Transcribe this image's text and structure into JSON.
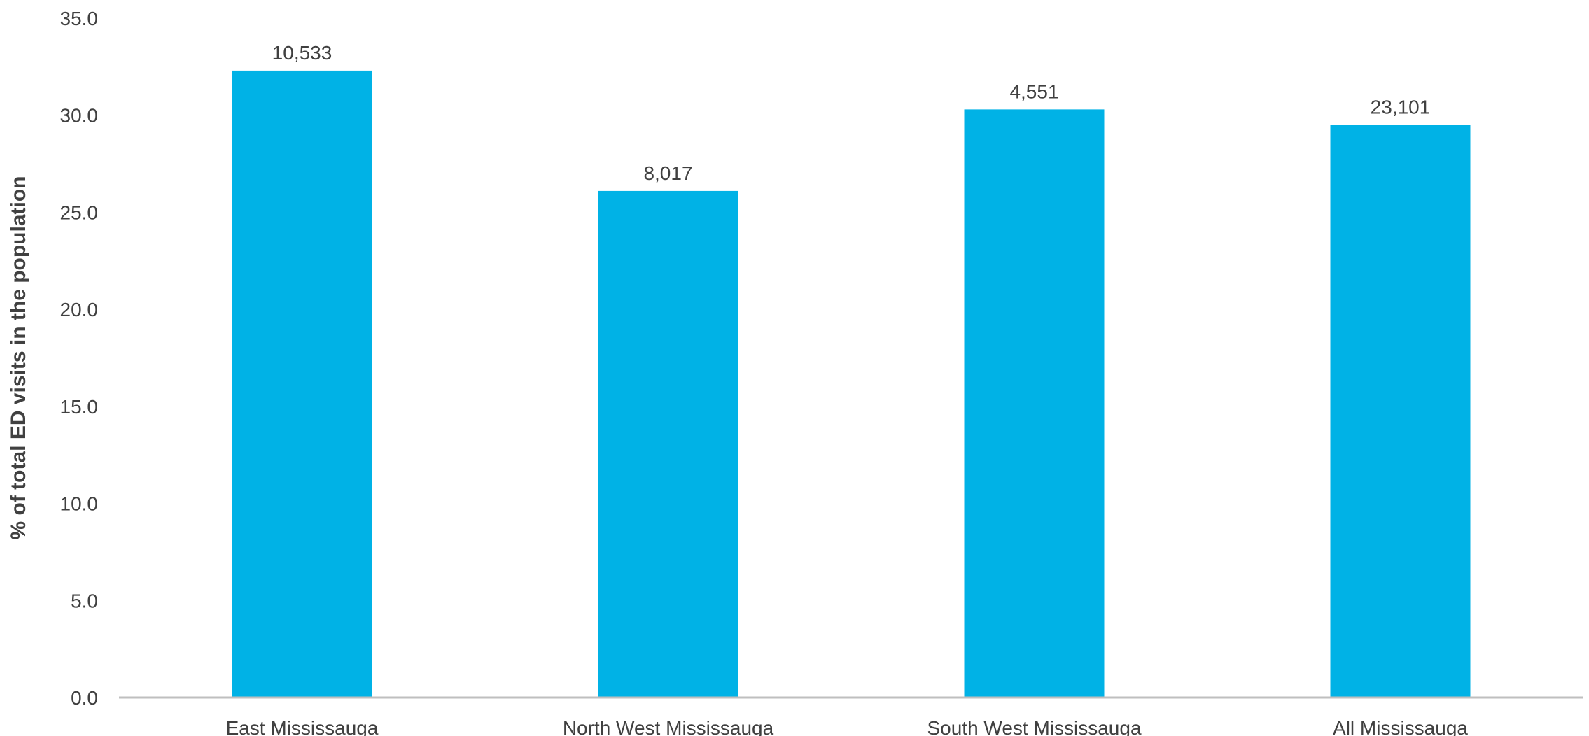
{
  "chart_data": {
    "type": "bar",
    "categories": [
      "East Mississauga",
      "North West Mississauga",
      "South West Mississauga",
      "All Mississauga"
    ],
    "values": [
      32.3,
      26.1,
      30.3,
      29.5
    ],
    "data_labels": [
      "10,533",
      "8,017",
      "4,551",
      "23,101"
    ],
    "title": "",
    "xlabel": "",
    "ylabel": "% of total ED visits in the population",
    "ylim": [
      0,
      35
    ],
    "yticks": [
      "0.0",
      "5.0",
      "10.0",
      "15.0",
      "20.0",
      "25.0",
      "30.0",
      "35.0"
    ],
    "grid": false,
    "legend": "none",
    "bar_color": "#00B2E6",
    "axis_color": "#BFBFBF"
  }
}
